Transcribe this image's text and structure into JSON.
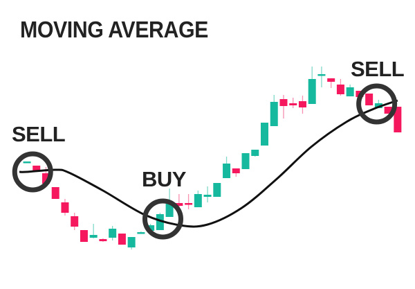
{
  "chart_data": {
    "type": "candlestick",
    "title": "MOVING AVERAGE",
    "xlabel": "",
    "ylabel": "",
    "grid": false,
    "legend": "none",
    "colors": {
      "up": "#16b99e",
      "down": "#f5185f",
      "up_wick": "#7fd9c8",
      "down_wick": "#f890b0",
      "ma_line": "#111111",
      "marker": "#333333"
    },
    "candles": [
      [
        165,
        167,
        165,
        167
      ],
      [
        161,
        161,
        154,
        154
      ],
      [
        150,
        159,
        135,
        135
      ],
      [
        130,
        130,
        113,
        113
      ],
      [
        108,
        113,
        89,
        93
      ],
      [
        88,
        93,
        68,
        73
      ],
      [
        68,
        68,
        51,
        51
      ],
      [
        57,
        77,
        56,
        61
      ],
      [
        55,
        56,
        51,
        52
      ],
      [
        57,
        74,
        53,
        70
      ],
      [
        63,
        63,
        47,
        47
      ],
      [
        43,
        58,
        40,
        58
      ],
      [
        63,
        66,
        63,
        65
      ],
      [
        67,
        77,
        67,
        75
      ],
      [
        68,
        93,
        68,
        91
      ],
      [
        87,
        128,
        87,
        106
      ],
      [
        107,
        120,
        100,
        103
      ],
      [
        107,
        120,
        98,
        105
      ],
      [
        101,
        125,
        101,
        120
      ],
      [
        116,
        131,
        108,
        119
      ],
      [
        116,
        136,
        116,
        136
      ],
      [
        143,
        174,
        143,
        164
      ],
      [
        157,
        157,
        145,
        150
      ],
      [
        156,
        179,
        156,
        179
      ],
      [
        175,
        184,
        174,
        184
      ],
      [
        190,
        223,
        190,
        223
      ],
      [
        218,
        263,
        218,
        253
      ],
      [
        257,
        263,
        229,
        247
      ],
      [
        251,
        259,
        244,
        248
      ],
      [
        254,
        262,
        236,
        245
      ],
      [
        250,
        304,
        250,
        286
      ],
      [
        291,
        304,
        274,
        293
      ],
      [
        287,
        287,
        273,
        282
      ],
      [
        278,
        286,
        262,
        264
      ],
      [
        261,
        278,
        261,
        274
      ],
      [
        269,
        269,
        260,
        260
      ],
      [
        265,
        265,
        248,
        248
      ],
      [
        244,
        256,
        244,
        251
      ],
      [
        246,
        246,
        236,
        236
      ],
      [
        246,
        246,
        209,
        209
      ]
    ],
    "candle_fields": [
      "open",
      "high",
      "low",
      "close"
    ],
    "moving_average": [
      {
        "i": -0.8,
        "v": 152
      },
      {
        "i": 0,
        "v": 152
      },
      {
        "i": 3,
        "v": 155
      },
      {
        "i": 4.4,
        "v": 151
      },
      {
        "i": 8,
        "v": 125
      },
      {
        "i": 12.4,
        "v": 90
      },
      {
        "i": 16.1,
        "v": 75
      },
      {
        "i": 19,
        "v": 76
      },
      {
        "i": 22.6,
        "v": 100
      },
      {
        "i": 26.3,
        "v": 142
      },
      {
        "i": 29.9,
        "v": 188
      },
      {
        "i": 33.6,
        "v": 224
      },
      {
        "i": 36.5,
        "v": 243
      },
      {
        "i": 39,
        "v": 255
      }
    ],
    "signals": [
      {
        "label": "SELL",
        "i": 0.6,
        "v": 152
      },
      {
        "label": "BUY",
        "i": 14.3,
        "v": 84
      },
      {
        "label": "SELL",
        "i": 36.8,
        "v": 250
      }
    ]
  }
}
